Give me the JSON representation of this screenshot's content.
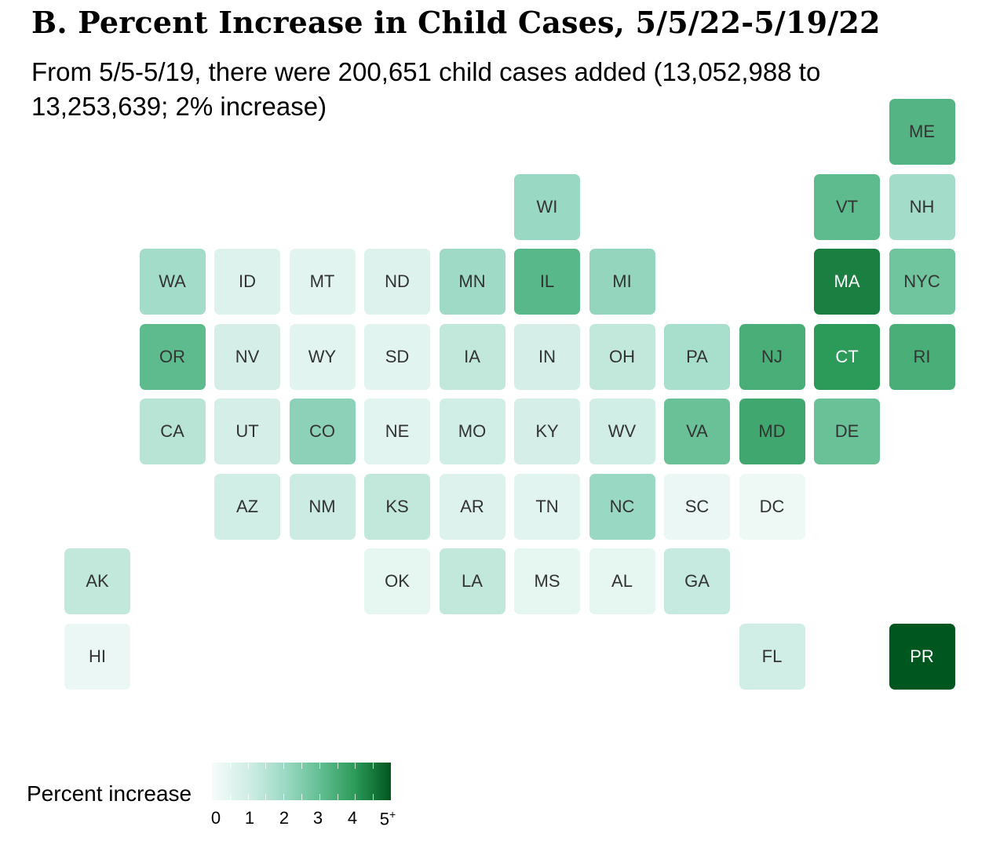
{
  "chart_data": {
    "type": "heatmap",
    "title_main": "B. Percent Increase in Child Cases,",
    "title_dates": "5/5/22-5/19/22",
    "subtitle": "From 5/5-5/19, there were 200,651 child cases added (13,052,988 to 13,253,639; 2% increase)",
    "legend": {
      "title": "Percent increase",
      "ticks": [
        "0",
        "1",
        "2",
        "3",
        "4",
        "5"
      ],
      "last_tick_suffix": "+",
      "range": [
        0,
        5
      ],
      "colors": [
        "#f7fcfb",
        "#ccece3",
        "#99d8c2",
        "#5ebb8e",
        "#2c9a58",
        "#00561f"
      ]
    },
    "tiles": [
      {
        "state": "ME",
        "col": 11,
        "row": 0,
        "value": 3.2
      },
      {
        "state": "WI",
        "col": 6,
        "row": 1,
        "value": 2.0
      },
      {
        "state": "VT",
        "col": 10,
        "row": 1,
        "value": 3.0
      },
      {
        "state": "NH",
        "col": 11,
        "row": 1,
        "value": 1.8
      },
      {
        "state": "WA",
        "col": 1,
        "row": 2,
        "value": 1.8
      },
      {
        "state": "ID",
        "col": 2,
        "row": 2,
        "value": 0.6
      },
      {
        "state": "MT",
        "col": 3,
        "row": 2,
        "value": 0.5
      },
      {
        "state": "ND",
        "col": 4,
        "row": 2,
        "value": 0.6
      },
      {
        "state": "MN",
        "col": 5,
        "row": 2,
        "value": 1.9
      },
      {
        "state": "IL",
        "col": 6,
        "row": 2,
        "value": 3.1
      },
      {
        "state": "MI",
        "col": 7,
        "row": 2,
        "value": 2.1
      },
      {
        "state": "MA",
        "col": 10,
        "row": 2,
        "value": 4.4
      },
      {
        "state": "NYC",
        "col": 11,
        "row": 2,
        "value": 2.7
      },
      {
        "state": "OR",
        "col": 1,
        "row": 3,
        "value": 3.0
      },
      {
        "state": "NV",
        "col": 2,
        "row": 3,
        "value": 0.8
      },
      {
        "state": "WY",
        "col": 3,
        "row": 3,
        "value": 0.5
      },
      {
        "state": "SD",
        "col": 4,
        "row": 3,
        "value": 0.5
      },
      {
        "state": "IA",
        "col": 5,
        "row": 3,
        "value": 1.2
      },
      {
        "state": "IN",
        "col": 6,
        "row": 3,
        "value": 0.8
      },
      {
        "state": "OH",
        "col": 7,
        "row": 3,
        "value": 1.2
      },
      {
        "state": "PA",
        "col": 8,
        "row": 3,
        "value": 1.7
      },
      {
        "state": "NJ",
        "col": 9,
        "row": 3,
        "value": 3.4
      },
      {
        "state": "CT",
        "col": 10,
        "row": 3,
        "value": 4.0
      },
      {
        "state": "RI",
        "col": 11,
        "row": 3,
        "value": 3.4
      },
      {
        "state": "CA",
        "col": 1,
        "row": 4,
        "value": 1.4
      },
      {
        "state": "UT",
        "col": 2,
        "row": 4,
        "value": 0.8
      },
      {
        "state": "CO",
        "col": 3,
        "row": 4,
        "value": 2.2
      },
      {
        "state": "NE",
        "col": 4,
        "row": 4,
        "value": 0.5
      },
      {
        "state": "MO",
        "col": 5,
        "row": 4,
        "value": 0.9
      },
      {
        "state": "KY",
        "col": 6,
        "row": 4,
        "value": 0.8
      },
      {
        "state": "WV",
        "col": 7,
        "row": 4,
        "value": 0.9
      },
      {
        "state": "VA",
        "col": 8,
        "row": 4,
        "value": 2.8
      },
      {
        "state": "MD",
        "col": 9,
        "row": 4,
        "value": 3.6
      },
      {
        "state": "DE",
        "col": 10,
        "row": 4,
        "value": 2.8
      },
      {
        "state": "AZ",
        "col": 2,
        "row": 5,
        "value": 0.9
      },
      {
        "state": "NM",
        "col": 3,
        "row": 5,
        "value": 1.0
      },
      {
        "state": "KS",
        "col": 4,
        "row": 5,
        "value": 1.2
      },
      {
        "state": "AR",
        "col": 5,
        "row": 5,
        "value": 0.6
      },
      {
        "state": "TN",
        "col": 6,
        "row": 5,
        "value": 0.5
      },
      {
        "state": "NC",
        "col": 7,
        "row": 5,
        "value": 2.0
      },
      {
        "state": "SC",
        "col": 8,
        "row": 5,
        "value": 0.3
      },
      {
        "state": "DC",
        "col": 9,
        "row": 5,
        "value": 0.2
      },
      {
        "state": "AK",
        "col": 0,
        "row": 6,
        "value": 1.2
      },
      {
        "state": "OK",
        "col": 4,
        "row": 6,
        "value": 0.4
      },
      {
        "state": "LA",
        "col": 5,
        "row": 6,
        "value": 1.2
      },
      {
        "state": "MS",
        "col": 6,
        "row": 6,
        "value": 0.4
      },
      {
        "state": "AL",
        "col": 7,
        "row": 6,
        "value": 0.4
      },
      {
        "state": "GA",
        "col": 8,
        "row": 6,
        "value": 1.1
      },
      {
        "state": "HI",
        "col": 0,
        "row": 7,
        "value": 0.3
      },
      {
        "state": "FL",
        "col": 9,
        "row": 7,
        "value": 0.9
      },
      {
        "state": "PR",
        "col": 11,
        "row": 7,
        "value": 5.0
      }
    ]
  }
}
